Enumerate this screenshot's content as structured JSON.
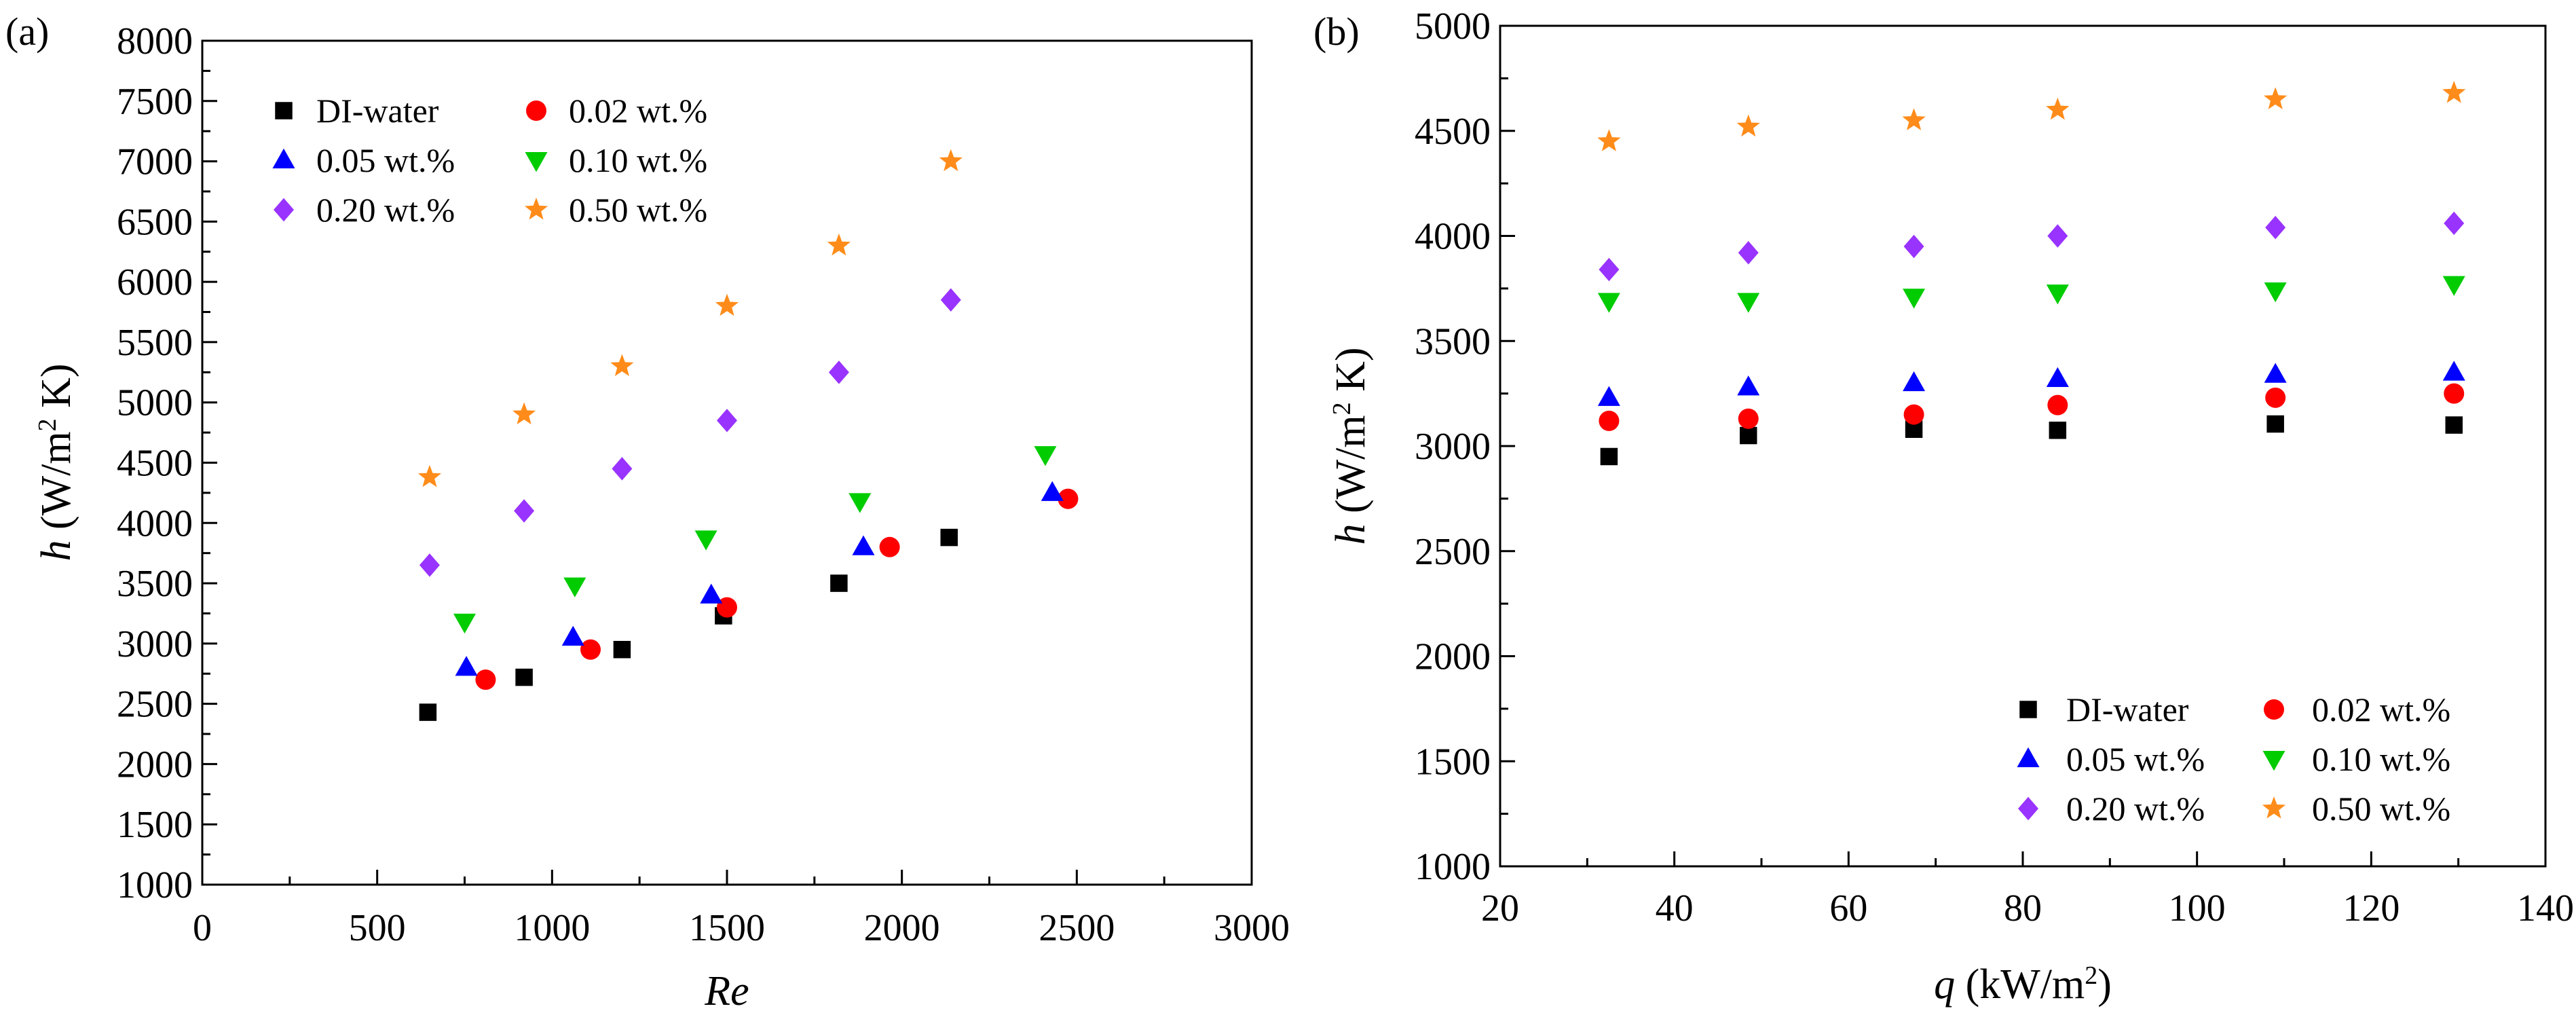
{
  "colors": {
    "DI-water": "#000000",
    "0.02 wt.%": "#ff0000",
    "0.05 wt.%": "#0000ff",
    "0.10 wt.%": "#00cc00",
    "0.20 wt.%": "#9933ff",
    "0.50 wt.%": "#ff8c1a"
  },
  "chart_data": [
    {
      "type": "scatter",
      "panel_label": "(a)",
      "title": "",
      "xlabel": "Re",
      "ylabel": {
        "italic": "h",
        "prefix": "(W/m",
        "sup": "2",
        "suffix": " K)"
      },
      "xlim": [
        0,
        3000
      ],
      "ylim": [
        1000,
        8000
      ],
      "xticks": [
        0,
        500,
        1000,
        1500,
        2000,
        2500,
        3000
      ],
      "yticks": [
        1000,
        1500,
        2000,
        2500,
        3000,
        3500,
        4000,
        4500,
        5000,
        5500,
        6000,
        6500,
        7000,
        7500,
        8000
      ],
      "grid": false,
      "legend_position": "top-left",
      "series": [
        {
          "name": "DI-water",
          "marker": "square",
          "x": [
            645,
            920,
            1200,
            1490,
            1820,
            2135
          ],
          "y": [
            2430,
            2720,
            2950,
            3230,
            3500,
            3880
          ]
        },
        {
          "name": "0.02 wt.%",
          "marker": "circle",
          "x": [
            810,
            1110,
            1500,
            1965,
            2475
          ],
          "y": [
            2700,
            2950,
            3300,
            3800,
            4200
          ]
        },
        {
          "name": "0.05 wt.%",
          "marker": "triangle-up",
          "x": [
            755,
            1060,
            1455,
            1890,
            2430
          ],
          "y": [
            2800,
            3050,
            3400,
            3800,
            4250
          ]
        },
        {
          "name": "0.10 wt.%",
          "marker": "triangle-down",
          "x": [
            750,
            1065,
            1440,
            1880,
            2410
          ],
          "y": [
            3180,
            3480,
            3870,
            4180,
            4570
          ]
        },
        {
          "name": "0.20 wt.%",
          "marker": "diamond",
          "x": [
            650,
            920,
            1200,
            1500,
            1820,
            2140
          ],
          "y": [
            3650,
            4100,
            4450,
            4850,
            5250,
            5850
          ]
        },
        {
          "name": "0.50 wt.%",
          "marker": "star",
          "x": [
            650,
            920,
            1200,
            1500,
            1820,
            2140
          ],
          "y": [
            4380,
            4900,
            5300,
            5800,
            6300,
            7000
          ]
        }
      ]
    },
    {
      "type": "scatter",
      "panel_label": "(b)",
      "title": "",
      "xlabel": {
        "italic": "q",
        "prefix": " (kW/m",
        "sup": "2",
        "suffix": ")"
      },
      "ylabel": {
        "italic": "h",
        "prefix": "(W/m",
        "sup": "2",
        "suffix": " K)"
      },
      "xlim": [
        20,
        140
      ],
      "ylim": [
        1000,
        5000
      ],
      "xticks": [
        20,
        40,
        60,
        80,
        100,
        120,
        140
      ],
      "yticks": [
        1000,
        1500,
        2000,
        2500,
        3000,
        3500,
        4000,
        4500,
        5000
      ],
      "grid": false,
      "legend_position": "bottom-right",
      "series": [
        {
          "name": "DI-water",
          "marker": "square",
          "x": [
            32.5,
            48.5,
            67.5,
            84,
            109,
            129.5
          ],
          "y": [
            2950,
            3050,
            3080,
            3075,
            3105,
            3100
          ]
        },
        {
          "name": "0.02 wt.%",
          "marker": "circle",
          "x": [
            32.5,
            48.5,
            67.5,
            84,
            109,
            129.5
          ],
          "y": [
            3120,
            3130,
            3150,
            3195,
            3230,
            3250
          ]
        },
        {
          "name": "0.05 wt.%",
          "marker": "triangle-up",
          "x": [
            32.5,
            48.5,
            67.5,
            84,
            109,
            129.5
          ],
          "y": [
            3230,
            3280,
            3300,
            3320,
            3340,
            3350
          ]
        },
        {
          "name": "0.10 wt.%",
          "marker": "triangle-down",
          "x": [
            32.5,
            48.5,
            67.5,
            84,
            109,
            129.5
          ],
          "y": [
            3690,
            3690,
            3710,
            3730,
            3740,
            3770
          ]
        },
        {
          "name": "0.20 wt.%",
          "marker": "diamond",
          "x": [
            32.5,
            48.5,
            67.5,
            84,
            109,
            129.5
          ],
          "y": [
            3840,
            3920,
            3950,
            4000,
            4040,
            4060
          ]
        },
        {
          "name": "0.50 wt.%",
          "marker": "star",
          "x": [
            32.5,
            48.5,
            67.5,
            84,
            109,
            129.5
          ],
          "y": [
            4450,
            4520,
            4550,
            4600,
            4650,
            4680
          ]
        }
      ]
    }
  ]
}
